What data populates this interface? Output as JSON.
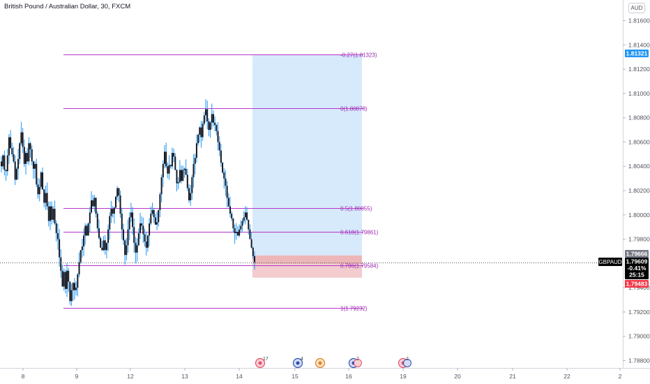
{
  "header": {
    "title": "British Pound / Australian Dollar, 30, FXCM",
    "currency": "AUD"
  },
  "colors": {
    "fib_line": "#b535c9",
    "fib_text": "#9c27b0",
    "target_zone": "#cfe6fb",
    "stop_zone": "#f1c7c9",
    "stop_zone_dark": "#e9a7ab",
    "candle": "#131722",
    "wick": "#2196f3",
    "price_label": "#000000",
    "blue_label": "#2196f3",
    "red_label": "#f23645",
    "gray_label": "#787b86"
  },
  "chart_data": {
    "type": "candlestick",
    "symbol": "GBPAUD",
    "timeframe": "30",
    "y_axis": {
      "ticks": [
        "1.81600",
        "1.81400",
        "1.81200",
        "1.81000",
        "1.80800",
        "1.80600",
        "1.80400",
        "1.80200",
        "1.80000",
        "1.79800",
        "1.79400",
        "1.79200",
        "1.79000",
        "1.78800"
      ],
      "range": [
        1.7872,
        1.8178
      ]
    },
    "x_axis": {
      "ticks": [
        "8",
        "9",
        "12",
        "13",
        "14",
        "15",
        "16",
        "19",
        "20",
        "21",
        "22",
        "2"
      ]
    },
    "fibonacci": [
      {
        "label": "-0.27(1.81323)",
        "level": -0.27,
        "price": 1.81323
      },
      {
        "label": "0(1.80878)",
        "level": 0,
        "price": 1.80878
      },
      {
        "label": "0.5(1.80055)",
        "level": 0.5,
        "price": 1.80055
      },
      {
        "label": "0.618(1.79861)",
        "level": 0.618,
        "price": 1.79861
      },
      {
        "label": "0.786(1.79584)",
        "level": 0.786,
        "price": 1.79584
      },
      {
        "label": "1(1.79232)",
        "level": 1,
        "price": 1.79232
      }
    ],
    "position": {
      "type": "long",
      "entry": 1.79666,
      "target": 1.81321,
      "stop": 1.79483
    },
    "price_labels": {
      "target": "1.81321",
      "entry": "1.79666",
      "current": "1.79609",
      "change": "-0.41%",
      "countdown": "25:15",
      "stop": "1.79483",
      "symbol_tag": "GBPAUD"
    },
    "series_close": [
      1.804,
      1.8049,
      1.8037,
      1.8036,
      1.8049,
      1.8064,
      1.8055,
      1.805,
      1.8044,
      1.8029,
      1.8038,
      1.8046,
      1.8059,
      1.8068,
      1.8056,
      1.8042,
      1.8051,
      1.8044,
      1.8059,
      1.8054,
      1.8044,
      1.8038,
      1.8042,
      1.8025,
      1.8017,
      1.8023,
      1.8035,
      1.8021,
      1.801,
      1.8018,
      1.8007,
      1.7995,
      1.8007,
      1.7996,
      1.8005,
      1.7993,
      1.7985,
      1.798,
      1.7965,
      1.7954,
      1.7941,
      1.7953,
      1.7939,
      1.7954,
      1.7945,
      1.7929,
      1.7938,
      1.7944,
      1.7938,
      1.794,
      1.7951,
      1.7961,
      1.7971,
      1.7974,
      1.7983,
      1.7991,
      1.7983,
      1.7993,
      1.8002,
      1.8012,
      1.8007,
      1.8014,
      1.8001,
      1.7989,
      1.7981,
      1.7973,
      1.7971,
      1.7979,
      1.7971,
      1.7977,
      1.7988,
      1.7999,
      1.8005,
      1.8001,
      1.8006,
      1.8015,
      1.8022,
      1.8016,
      1.8001,
      1.7988,
      1.7979,
      1.7967,
      1.7975,
      1.7988,
      1.7998,
      1.8002,
      1.799,
      1.7977,
      1.7969,
      1.7975,
      1.7985,
      1.7993,
      1.7991,
      1.7984,
      1.7978,
      1.7973,
      1.7983,
      1.7993,
      1.8001,
      1.8004,
      1.7998,
      1.7992,
      1.7994,
      1.8004,
      1.8017,
      1.8031,
      1.8042,
      1.8052,
      1.804,
      1.8034,
      1.8041,
      1.804,
      1.8051,
      1.8048,
      1.8037,
      1.8026,
      1.8027,
      1.8037,
      1.8028,
      1.8037,
      1.8038,
      1.8033,
      1.8022,
      1.8012,
      1.8018,
      1.8031,
      1.8042,
      1.8047,
      1.8059,
      1.8066,
      1.8072,
      1.8064,
      1.8075,
      1.8082,
      1.8087,
      1.8077,
      1.807,
      1.8076,
      1.8083,
      1.8076,
      1.8074,
      1.8069,
      1.806,
      1.8053,
      1.8043,
      1.8035,
      1.803,
      1.8024,
      1.8014,
      1.8007,
      1.8001,
      1.7997,
      1.7989,
      1.7985,
      1.7986,
      1.7983,
      1.7988,
      1.7991,
      1.7995,
      1.7998,
      1.8002,
      1.7996,
      1.7988,
      1.798,
      1.7973,
      1.7966,
      1.7961
    ]
  },
  "events": [
    {
      "count": "17"
    },
    {
      "count": "4"
    },
    {
      "count": ""
    },
    {
      "count": "2"
    },
    {
      "count": "2"
    }
  ]
}
